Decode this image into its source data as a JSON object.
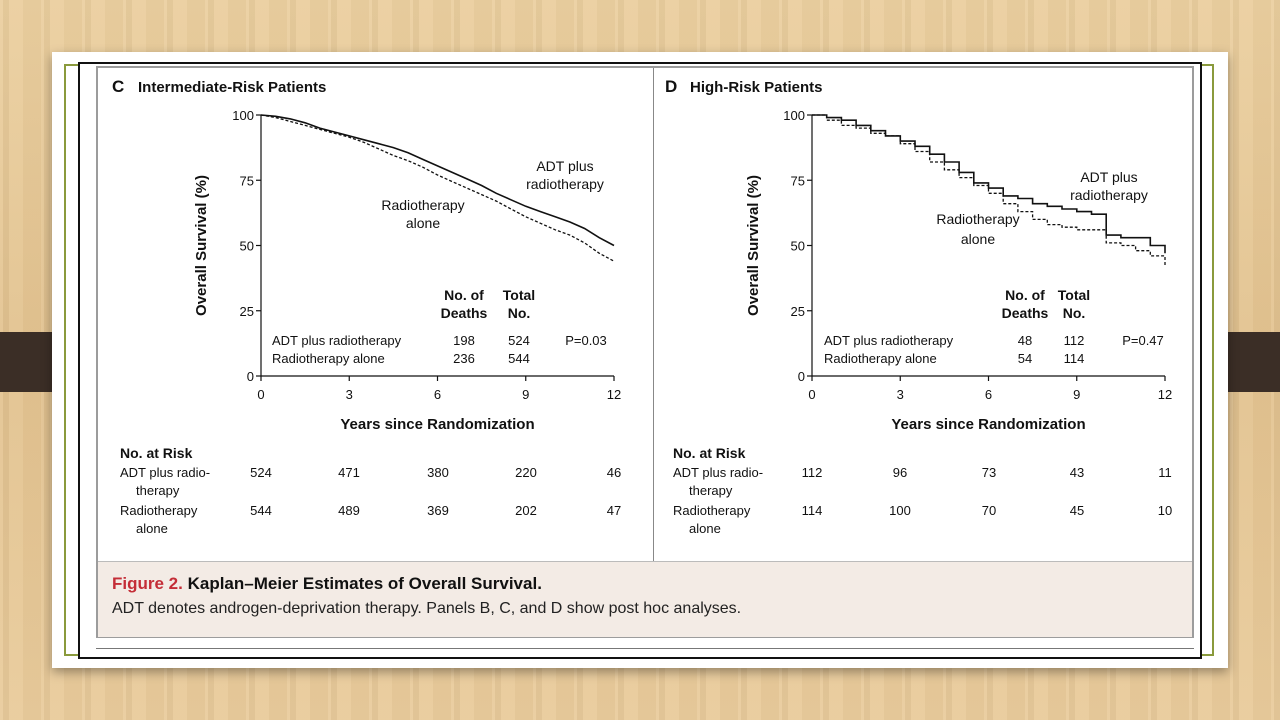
{
  "caption": {
    "figure_label": "Figure 2.",
    "title": "Kaplan–Meier Estimates of Overall Survival.",
    "note": "ADT denotes androgen-deprivation therapy. Panels B, C, and D show post hoc analyses."
  },
  "colors": {
    "figure_label": "#c42d37",
    "caption_bg": "#f3ebe5",
    "frame_green": "#8a9a3c"
  },
  "chart_data": [
    {
      "type": "line",
      "panel_letter": "C",
      "title": "Intermediate-Risk Patients",
      "xlabel": "Years since Randomization",
      "ylabel": "Overall Survival (%)",
      "xlim": [
        0,
        12
      ],
      "ylim": [
        0,
        100
      ],
      "x_ticks": [
        "0",
        "3",
        "6",
        "9",
        "12"
      ],
      "y_ticks": [
        "0",
        "25",
        "50",
        "75",
        "100"
      ],
      "series": [
        {
          "name": "ADT plus radiotherapy",
          "style": "solid",
          "label": [
            "ADT plus",
            "radiotherapy"
          ],
          "x": [
            0,
            0.5,
            1,
            1.5,
            2,
            2.5,
            3,
            3.5,
            4,
            4.5,
            5,
            5.5,
            6,
            6.5,
            7,
            7.5,
            8,
            8.5,
            9,
            9.5,
            10,
            10.5,
            11,
            11.5,
            12
          ],
          "y": [
            100,
            99.5,
            98.5,
            97,
            95,
            93.5,
            92,
            90.5,
            89,
            87.5,
            85.5,
            83,
            80.5,
            78,
            75.5,
            73,
            70,
            67.5,
            65,
            63,
            61,
            59,
            56.5,
            53,
            50
          ]
        },
        {
          "name": "Radiotherapy alone",
          "style": "dashed",
          "label": [
            "Radiotherapy",
            "alone"
          ],
          "x": [
            0,
            0.5,
            1,
            1.5,
            2,
            2.5,
            3,
            3.5,
            4,
            4.5,
            5,
            5.5,
            6,
            6.5,
            7,
            7.5,
            8,
            8.5,
            9,
            9.5,
            10,
            10.5,
            11,
            11.5,
            12
          ],
          "y": [
            100,
            99,
            97.5,
            96,
            94.5,
            93,
            91.5,
            89.5,
            87,
            84.5,
            82.5,
            80,
            77,
            74.5,
            72,
            69.5,
            67,
            64,
            61,
            58.5,
            56,
            54,
            51,
            47,
            44
          ]
        }
      ],
      "stats_table": {
        "headers": [
          [
            "No. of",
            "Deaths"
          ],
          [
            "Total",
            "No."
          ]
        ],
        "rows": [
          {
            "label": "ADT plus radiotherapy",
            "deaths": "198",
            "total": "524"
          },
          {
            "label": "Radiotherapy alone",
            "deaths": "236",
            "total": "544"
          }
        ],
        "p_value": "P=0.03"
      },
      "at_risk": {
        "heading": "No. at Risk",
        "rows": [
          {
            "label": [
              "ADT plus radio-",
              "therapy"
            ],
            "values": [
              "524",
              "471",
              "380",
              "220",
              "46"
            ]
          },
          {
            "label": [
              "Radiotherapy",
              "alone"
            ],
            "values": [
              "544",
              "489",
              "369",
              "202",
              "47"
            ]
          }
        ]
      }
    },
    {
      "type": "line",
      "panel_letter": "D",
      "title": "High-Risk Patients",
      "xlabel": "Years since Randomization",
      "ylabel": "Overall Survival (%)",
      "xlim": [
        0,
        12
      ],
      "ylim": [
        0,
        100
      ],
      "x_ticks": [
        "0",
        "3",
        "6",
        "9",
        "12"
      ],
      "y_ticks": [
        "0",
        "25",
        "50",
        "75",
        "100"
      ],
      "series": [
        {
          "name": "ADT plus radiotherapy",
          "style": "solid",
          "step": true,
          "label": [
            "ADT plus",
            "radiotherapy"
          ],
          "x": [
            0,
            0.5,
            1,
            1.5,
            2,
            2.5,
            3,
            3.5,
            4,
            4.5,
            5,
            5.5,
            6,
            6.5,
            7,
            7.5,
            8,
            8.5,
            9,
            9.5,
            10,
            10.5,
            11,
            11.5,
            12
          ],
          "y": [
            100,
            99,
            98,
            96,
            94,
            92,
            90,
            88,
            85,
            82,
            78,
            74,
            72,
            69,
            68,
            66,
            65,
            64,
            63,
            62,
            54,
            53,
            53,
            50,
            47
          ]
        },
        {
          "name": "Radiotherapy alone",
          "style": "dashed",
          "step": true,
          "label": [
            "Radiotherapy",
            "alone"
          ],
          "x": [
            0,
            0.5,
            1,
            1.5,
            2,
            2.5,
            3,
            3.5,
            4,
            4.5,
            5,
            5.5,
            6,
            6.5,
            7,
            7.5,
            8,
            8.5,
            9,
            9.5,
            10,
            10.5,
            11,
            11.5,
            12
          ],
          "y": [
            100,
            98,
            96,
            95,
            93,
            92,
            89,
            86,
            82,
            79,
            76,
            73,
            70,
            66,
            63,
            60,
            58,
            57,
            56,
            56,
            51,
            50,
            48,
            46,
            42
          ]
        }
      ],
      "stats_table": {
        "headers": [
          [
            "No. of",
            "Deaths"
          ],
          [
            "Total",
            "No."
          ]
        ],
        "rows": [
          {
            "label": "ADT plus radiotherapy",
            "deaths": "48",
            "total": "112"
          },
          {
            "label": "Radiotherapy alone",
            "deaths": "54",
            "total": "114"
          }
        ],
        "p_value": "P=0.47"
      },
      "at_risk": {
        "heading": "No. at Risk",
        "rows": [
          {
            "label": [
              "ADT plus radio-",
              "therapy"
            ],
            "values": [
              "112",
              "96",
              "73",
              "43",
              "11"
            ]
          },
          {
            "label": [
              "Radiotherapy",
              "alone"
            ],
            "values": [
              "114",
              "100",
              "70",
              "45",
              "10"
            ]
          }
        ]
      }
    }
  ]
}
